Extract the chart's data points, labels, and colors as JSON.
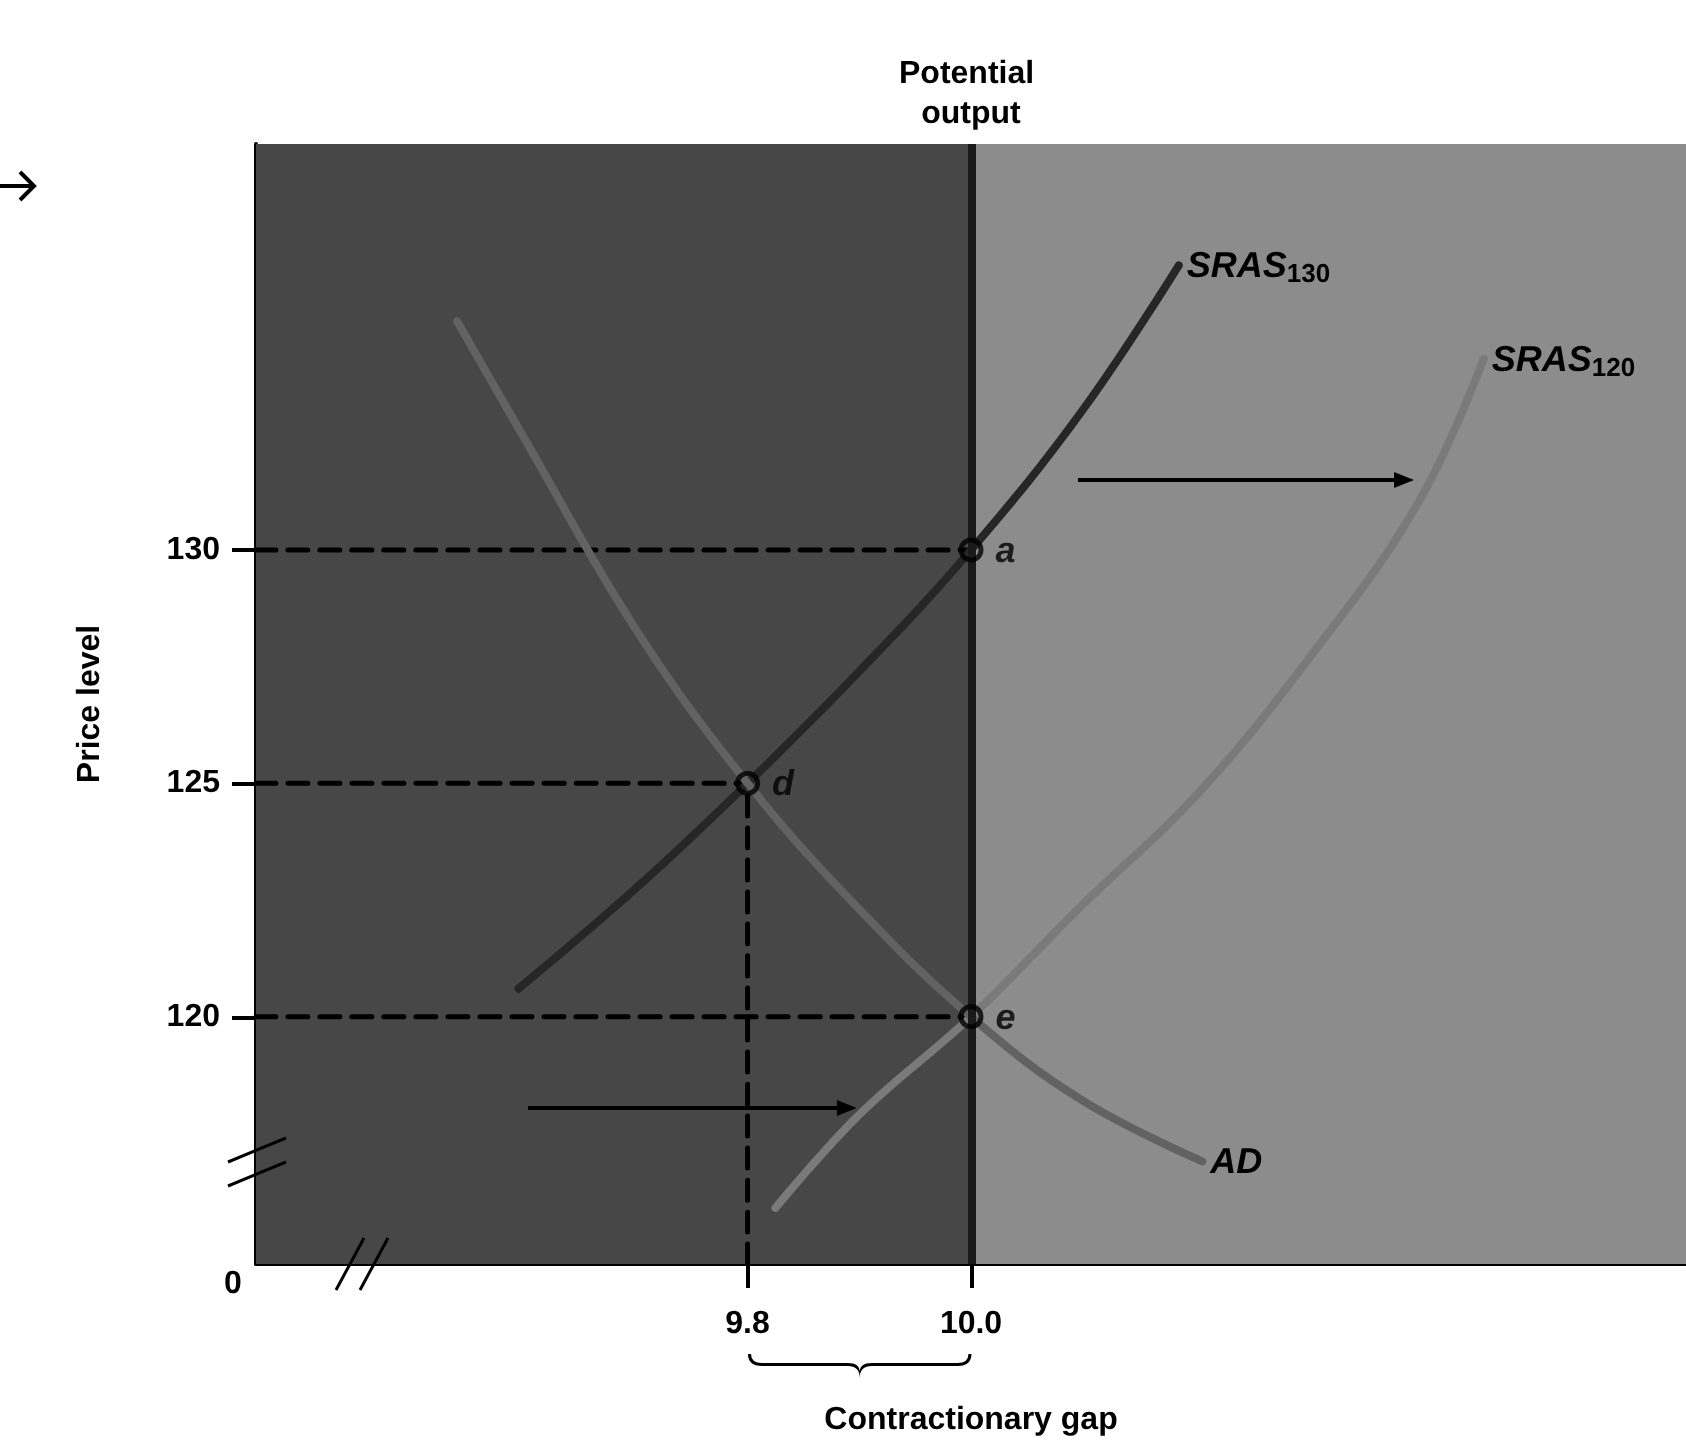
{
  "chart_data": {
    "type": "line",
    "xlabel": "Contractionary gap",
    "ylabel": "Price level",
    "xlim": [
      9.36,
      10.64
    ],
    "ylim": [
      114.7,
      138.7
    ],
    "xticks": [
      9.8,
      {
        "value": 10,
        "label": "10.0"
      }
    ],
    "yticks": [
      120,
      125,
      130
    ],
    "bands": [
      {
        "axis": "x",
        "from": 9.36,
        "to": 10.0,
        "color": "#474747"
      },
      {
        "axis": "x",
        "from": 10.0,
        "to": 10.64,
        "color": "#8c8c8c"
      }
    ],
    "ref_lines": [
      {
        "axis": "x",
        "value": 10.0,
        "label": "Potential output",
        "color": "#1a1a1a"
      }
    ],
    "series": [
      {
        "name": "SRAS$_{130}$",
        "color": "#262626",
        "x": [
          9.595,
          9.7,
          9.8,
          9.9,
          10.0,
          10.1,
          10.186
        ],
        "values": [
          120.6,
          122.75,
          125,
          127.4,
          130,
          133,
          136.1
        ]
      },
      {
        "name": "SRAS$_{120}$",
        "color": "#7a7a7a",
        "x": [
          9.825,
          9.9,
          10.0,
          10.1,
          10.2,
          10.3,
          10.4,
          10.459
        ],
        "values": [
          115.9,
          117.9,
          120,
          122.4,
          124.7,
          127.6,
          131,
          134.1
        ]
      },
      {
        "name": "AD",
        "color": "#626262",
        "x": [
          9.54,
          9.6,
          9.7,
          9.8,
          9.9,
          10.0,
          10.1,
          10.207
        ],
        "values": [
          134.9,
          132.4,
          128.3,
          125,
          122.3,
          120,
          118.2,
          116.9
        ]
      },
      {
        "color": "#000000",
        "line_style": "dashed",
        "x": [
          9.36,
          10.0
        ],
        "values": [
          130,
          130
        ]
      },
      {
        "color": "#000000",
        "line_style": "dashed",
        "x": [
          9.36,
          9.8
        ],
        "values": [
          125,
          125
        ]
      },
      {
        "color": "#000000",
        "line_style": "dashed",
        "x": [
          9.36,
          10.0
        ],
        "values": [
          120,
          120
        ]
      },
      {
        "color": "#000000",
        "line_style": "dashed",
        "x": [
          9.8,
          9.8
        ],
        "values": [
          114.7,
          125
        ]
      },
      {
        "type": "scatter",
        "color": "#000000",
        "marker": "circle",
        "x": [
          10.0,
          9.8,
          10.0
        ],
        "values": [
          130,
          125,
          120
        ],
        "value_labels": [
          "a",
          "d",
          "e"
        ]
      }
    ],
    "annotations": [
      "0"
    ]
  }
}
